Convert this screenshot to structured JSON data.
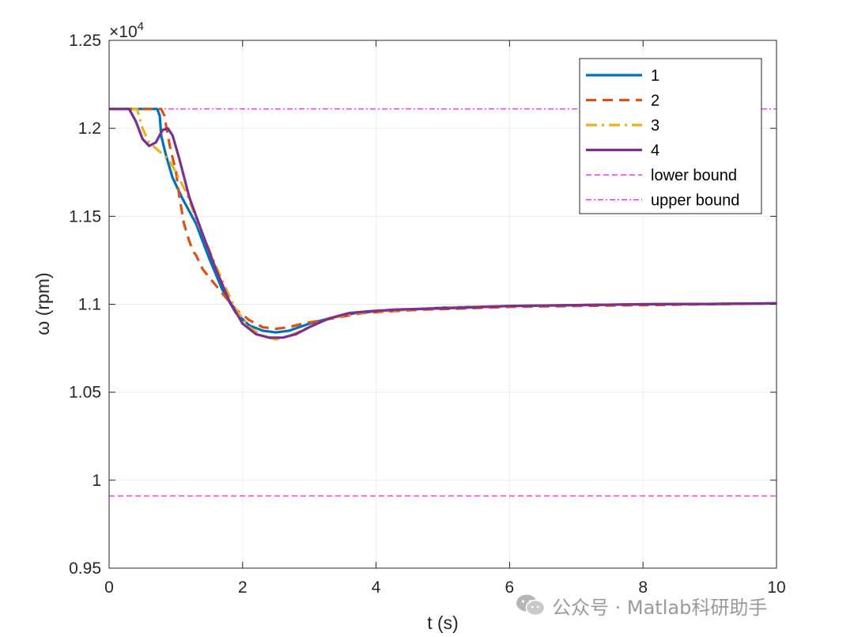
{
  "chart_data": {
    "type": "line",
    "xlabel": "t (s)",
    "ylabel": "ω (rpm)",
    "y_exponent_label": "×10",
    "y_exponent_power": "4",
    "xlim": [
      0,
      10
    ],
    "ylim": [
      0.95,
      1.25
    ],
    "x_ticks": [
      0,
      2,
      4,
      6,
      8,
      10
    ],
    "x_tick_labels": [
      "0",
      "2",
      "4",
      "6",
      "8",
      "10"
    ],
    "y_ticks": [
      0.95,
      1.0,
      1.05,
      1.1,
      1.15,
      1.2,
      1.25
    ],
    "y_tick_labels": [
      "0.95",
      "1",
      "1.05",
      "1.1",
      "1.15",
      "1.2",
      "1.25"
    ],
    "grid": true,
    "legend_position": "top-right",
    "series": [
      {
        "name": "1",
        "color": "#0072BD",
        "dash": "solid",
        "x": [
          0,
          0.72,
          0.76,
          0.78,
          0.85,
          0.95,
          1.1,
          1.3,
          1.5,
          1.7,
          1.9,
          2.1,
          2.3,
          2.5,
          2.7,
          3.0,
          3.3,
          3.7,
          4.0,
          4.5,
          5.0,
          6.0,
          7.0,
          8.0,
          9.0,
          10.0
        ],
        "y": [
          1.211,
          1.211,
          1.207,
          1.196,
          1.185,
          1.172,
          1.16,
          1.146,
          1.126,
          1.108,
          1.095,
          1.088,
          1.085,
          1.084,
          1.085,
          1.089,
          1.092,
          1.095,
          1.096,
          1.097,
          1.098,
          1.099,
          1.0995,
          1.1,
          1.1002,
          1.1005
        ]
      },
      {
        "name": "2",
        "color": "#D95319",
        "dash": "dashed",
        "x": [
          0,
          0.78,
          0.83,
          0.86,
          0.92,
          1.0,
          1.05,
          1.12,
          1.2,
          1.26,
          1.3,
          1.4,
          1.55,
          1.7,
          1.9,
          2.1,
          2.3,
          2.5,
          2.7,
          2.9,
          3.2,
          3.5,
          3.8,
          4.2,
          4.7,
          5.2,
          6.0,
          7.0,
          8.0,
          9.0,
          10.0
        ],
        "y": [
          1.211,
          1.211,
          1.207,
          1.2,
          1.188,
          1.176,
          1.162,
          1.146,
          1.136,
          1.13,
          1.128,
          1.12,
          1.113,
          1.106,
          1.097,
          1.091,
          1.087,
          1.086,
          1.087,
          1.089,
          1.091,
          1.093,
          1.095,
          1.096,
          1.097,
          1.0975,
          1.0985,
          1.099,
          1.0995,
          1.1,
          1.1005
        ]
      },
      {
        "name": "3",
        "color": "#EDB120",
        "dash": "dashdot",
        "x": [
          0,
          0.42,
          0.5,
          0.6,
          0.75,
          0.9,
          1.0,
          1.15,
          1.3,
          1.5,
          1.7,
          1.9,
          2.1,
          2.3,
          2.5,
          2.7,
          3.0,
          3.3,
          3.7,
          4.0,
          4.5,
          5.0,
          6.0,
          7.0,
          8.0,
          9.0,
          10.0
        ],
        "y": [
          1.211,
          1.211,
          1.2,
          1.192,
          1.187,
          1.182,
          1.175,
          1.164,
          1.149,
          1.131,
          1.113,
          1.097,
          1.087,
          1.082,
          1.08,
          1.082,
          1.087,
          1.092,
          1.095,
          1.096,
          1.097,
          1.098,
          1.099,
          1.0995,
          1.1,
          1.1002,
          1.1005
        ]
      },
      {
        "name": "4",
        "color": "#7E2F8E",
        "dash": "solid",
        "x": [
          0,
          0.3,
          0.4,
          0.5,
          0.6,
          0.7,
          0.8,
          0.88,
          0.95,
          1.05,
          1.2,
          1.4,
          1.6,
          1.8,
          2.0,
          2.2,
          2.4,
          2.6,
          2.8,
          3.0,
          3.3,
          3.6,
          3.9,
          4.3,
          4.8,
          5.3,
          6.0,
          7.0,
          8.0,
          9.0,
          10.0
        ],
        "y": [
          1.211,
          1.211,
          1.204,
          1.194,
          1.19,
          1.192,
          1.199,
          1.2,
          1.196,
          1.183,
          1.161,
          1.14,
          1.12,
          1.102,
          1.089,
          1.083,
          1.081,
          1.081,
          1.083,
          1.087,
          1.092,
          1.095,
          1.096,
          1.097,
          1.0975,
          1.098,
          1.099,
          1.0995,
          1.1,
          1.1002,
          1.1005
        ]
      },
      {
        "name": "lower bound",
        "color": "#FF00FF",
        "dash": "thin-dashed",
        "x": [
          0,
          10
        ],
        "y": [
          0.991,
          0.991
        ]
      },
      {
        "name": "upper bound",
        "color": "#FF00FF",
        "dash": "thin-dashdot",
        "x": [
          0,
          10
        ],
        "y": [
          1.211,
          1.211
        ]
      }
    ]
  },
  "watermark": {
    "text": "公众号 · Matlab科研助手",
    "icon": "wechat-icon"
  }
}
